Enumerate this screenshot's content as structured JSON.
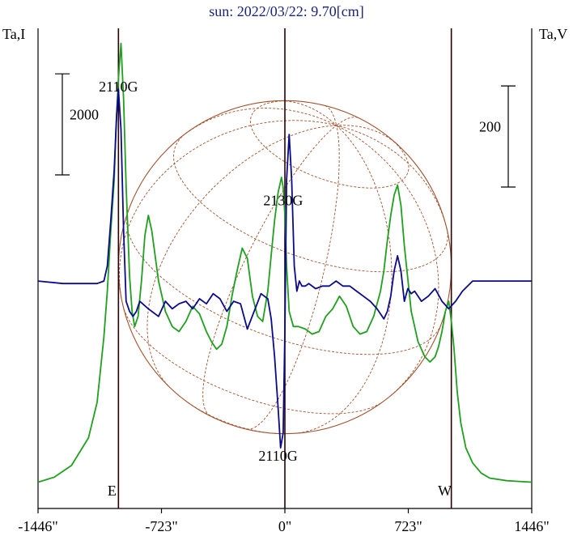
{
  "colors": {
    "intensity": "#1fa01f",
    "polarization": "#0a0a8c",
    "grid": "#a0522d",
    "frame": "#000000",
    "vertical_line": "#2b0000",
    "title": "#1a237e"
  },
  "chart_data": {
    "type": "line",
    "title": "sun: 2022/03/22: 9.70[cm]",
    "y_left_label": "Ta,I",
    "y_right_label": "Ta,V",
    "xlim": [
      -1446,
      1446
    ],
    "x_ticks": [
      {
        "value": -1446,
        "label": "-1446\""
      },
      {
        "value": -723,
        "label": "-723\""
      },
      {
        "value": 0,
        "label": "0\""
      },
      {
        "value": 723,
        "label": "723\""
      },
      {
        "value": 1446,
        "label": "1446\""
      }
    ],
    "scale_bars": {
      "left": {
        "label": "2000",
        "value": 2000,
        "range": [
          6100,
          8100
        ]
      },
      "right": {
        "label": "200",
        "value": 200,
        "range": [
          186,
          386
        ]
      }
    },
    "ylim_left": [
      -500,
      9000
    ],
    "ylim_right": [
      -450,
      500
    ],
    "vertical_lines": [
      {
        "x": -975,
        "label": "E"
      },
      {
        "x": 0,
        "label": ""
      },
      {
        "x": 975,
        "label": "W"
      }
    ],
    "solar_disk_radius": 975,
    "annotations": [
      {
        "text": "2110G",
        "x": -975,
        "y_series": "intensity",
        "y": 7750
      },
      {
        "text": "2130G",
        "x": -10,
        "y_series": "intensity",
        "y": 5500
      },
      {
        "text": "2110G",
        "x": -40,
        "y_series": "polarization",
        "y": -320
      }
    ],
    "series": [
      {
        "name": "Ta,I",
        "key": "intensity",
        "axis": "left",
        "x": [
          -1446,
          -1350,
          -1250,
          -1150,
          -1100,
          -1060,
          -1040,
          -1020,
          -1000,
          -990,
          -975,
          -960,
          -945,
          -930,
          -910,
          -895,
          -880,
          -860,
          -840,
          -820,
          -800,
          -780,
          -740,
          -700,
          -660,
          -620,
          -580,
          -540,
          -500,
          -460,
          -430,
          -400,
          -370,
          -340,
          -310,
          -280,
          -250,
          -220,
          -190,
          -160,
          -130,
          -100,
          -75,
          -60,
          -40,
          -20,
          -10,
          0,
          10,
          25,
          50,
          80,
          120,
          160,
          200,
          240,
          280,
          320,
          360,
          400,
          440,
          480,
          520,
          560,
          580,
          600,
          620,
          640,
          660,
          680,
          700,
          740,
          780,
          820,
          850,
          880,
          900,
          920,
          940,
          960,
          975,
          990,
          1010,
          1030,
          1060,
          1100,
          1150,
          1200,
          1300,
          1446
        ],
        "y": [
          20,
          120,
          350,
          900,
          1600,
          2900,
          3800,
          5000,
          6000,
          7000,
          8000,
          8700,
          7600,
          5900,
          4100,
          3400,
          3100,
          3300,
          4000,
          4900,
          5300,
          5000,
          4000,
          3400,
          3100,
          3000,
          3200,
          3500,
          3350,
          3000,
          2800,
          2650,
          2750,
          3100,
          3700,
          4200,
          4650,
          4450,
          3700,
          3300,
          3200,
          3800,
          4700,
          5200,
          5750,
          6050,
          5850,
          5300,
          4300,
          3400,
          3100,
          3100,
          3050,
          2950,
          3000,
          3300,
          3450,
          3700,
          3500,
          3100,
          2950,
          3000,
          3300,
          3800,
          4200,
          4800,
          5300,
          5700,
          5900,
          5500,
          4700,
          3400,
          2800,
          2500,
          2400,
          2500,
          2700,
          3000,
          3400,
          3600,
          3200,
          2700,
          1800,
          1200,
          700,
          400,
          200,
          100,
          50,
          20
        ]
      },
      {
        "name": "Ta,V",
        "key": "polarization",
        "axis": "right",
        "x": [
          -1446,
          -1300,
          -1200,
          -1100,
          -1060,
          -1040,
          -1020,
          -1000,
          -985,
          -975,
          -960,
          -945,
          -930,
          -910,
          -890,
          -870,
          -850,
          -800,
          -740,
          -700,
          -660,
          -620,
          -580,
          -540,
          -500,
          -460,
          -420,
          -380,
          -340,
          -300,
          -260,
          -220,
          -180,
          -140,
          -100,
          -80,
          -60,
          -40,
          -25,
          -10,
          0,
          10,
          25,
          40,
          55,
          70,
          85,
          100,
          120,
          140,
          180,
          220,
          260,
          300,
          340,
          380,
          420,
          460,
          500,
          540,
          580,
          600,
          620,
          640,
          660,
          680,
          700,
          720,
          740,
          760,
          780,
          800,
          840,
          880,
          920,
          960,
          1000,
          1040,
          1100,
          1200,
          1300,
          1446
        ],
        "y": [
          0,
          -5,
          -5,
          -5,
          0,
          30,
          120,
          220,
          330,
          380,
          300,
          100,
          -40,
          -60,
          -70,
          -60,
          -40,
          -55,
          -70,
          -40,
          -55,
          -45,
          -40,
          -55,
          -35,
          -45,
          -25,
          -35,
          -60,
          -40,
          -45,
          -95,
          -60,
          -25,
          -35,
          -75,
          -150,
          -250,
          -330,
          -300,
          -100,
          200,
          290,
          200,
          30,
          -20,
          0,
          -10,
          -10,
          -5,
          -15,
          -10,
          -10,
          0,
          -10,
          -10,
          -20,
          -30,
          -40,
          -55,
          -75,
          -60,
          -30,
          20,
          50,
          20,
          -40,
          -15,
          -25,
          -20,
          -30,
          -40,
          -30,
          -15,
          -40,
          -55,
          -40,
          -20,
          0,
          0,
          0,
          0
        ]
      }
    ]
  }
}
